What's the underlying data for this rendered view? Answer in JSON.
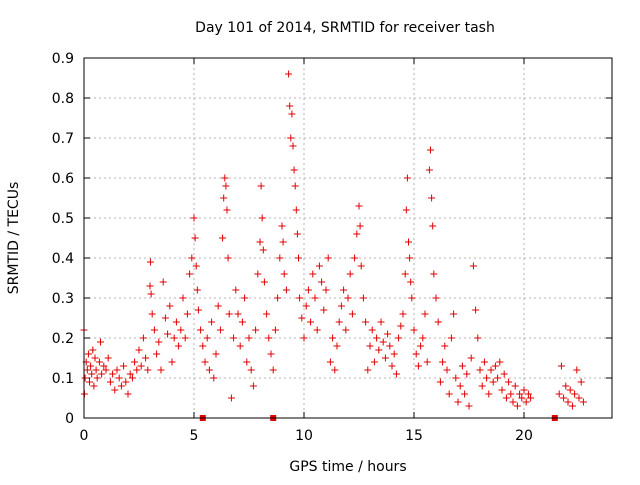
{
  "chart_data": {
    "type": "scatter",
    "title": "Day 101 of 2014, SRMTID for receiver tash",
    "xlabel": "GPS time / hours",
    "ylabel": "SRMTID / TECUs",
    "xlim": [
      0,
      24
    ],
    "ylim": [
      0,
      0.9
    ],
    "xticks": [
      0,
      5,
      10,
      15,
      20
    ],
    "yticks": [
      0,
      0.1,
      0.2,
      0.3,
      0.4,
      0.5,
      0.6,
      0.7,
      0.8,
      0.9
    ],
    "xtick_labels": [
      "0",
      "5",
      "10",
      "15",
      "20"
    ],
    "ytick_labels": [
      "0",
      "0.1",
      "0.2",
      "0.3",
      "0.4",
      "0.5",
      "0.6",
      "0.7",
      "0.8",
      "0.9"
    ],
    "grid": true,
    "marker": "+",
    "marker_color": "#e00000",
    "series": [
      {
        "name": "SRMTID",
        "points": [
          [
            0.0,
            0.22
          ],
          [
            0.02,
            0.06
          ],
          [
            0.05,
            0.1
          ],
          [
            0.1,
            0.14
          ],
          [
            0.15,
            0.12
          ],
          [
            0.2,
            0.16
          ],
          [
            0.25,
            0.09
          ],
          [
            0.3,
            0.13
          ],
          [
            0.35,
            0.11
          ],
          [
            0.4,
            0.17
          ],
          [
            0.45,
            0.08
          ],
          [
            0.5,
            0.15
          ],
          [
            0.55,
            0.12
          ],
          [
            0.6,
            0.1
          ],
          [
            0.7,
            0.14
          ],
          [
            0.75,
            0.19
          ],
          [
            0.8,
            0.11
          ],
          [
            0.9,
            0.13
          ],
          [
            1.0,
            0.12
          ],
          [
            1.1,
            0.15
          ],
          [
            1.2,
            0.09
          ],
          [
            1.3,
            0.11
          ],
          [
            1.4,
            0.07
          ],
          [
            1.5,
            0.12
          ],
          [
            1.6,
            0.1
          ],
          [
            1.7,
            0.08
          ],
          [
            1.8,
            0.13
          ],
          [
            1.9,
            0.09
          ],
          [
            2.0,
            0.06
          ],
          [
            2.1,
            0.11
          ],
          [
            2.2,
            0.1
          ],
          [
            2.3,
            0.14
          ],
          [
            2.4,
            0.12
          ],
          [
            2.5,
            0.17
          ],
          [
            2.6,
            0.13
          ],
          [
            2.7,
            0.2
          ],
          [
            2.8,
            0.15
          ],
          [
            2.9,
            0.12
          ],
          [
            3.0,
            0.33
          ],
          [
            3.02,
            0.39
          ],
          [
            3.05,
            0.31
          ],
          [
            3.1,
            0.26
          ],
          [
            3.2,
            0.22
          ],
          [
            3.3,
            0.16
          ],
          [
            3.4,
            0.19
          ],
          [
            3.5,
            0.12
          ],
          [
            3.6,
            0.34
          ],
          [
            3.7,
            0.25
          ],
          [
            3.8,
            0.21
          ],
          [
            3.9,
            0.28
          ],
          [
            4.0,
            0.14
          ],
          [
            4.1,
            0.2
          ],
          [
            4.2,
            0.24
          ],
          [
            4.3,
            0.18
          ],
          [
            4.4,
            0.22
          ],
          [
            4.5,
            0.3
          ],
          [
            4.6,
            0.2
          ],
          [
            4.7,
            0.26
          ],
          [
            4.8,
            0.36
          ],
          [
            4.9,
            0.4
          ],
          [
            5.0,
            0.5
          ],
          [
            5.05,
            0.45
          ],
          [
            5.1,
            0.38
          ],
          [
            5.15,
            0.32
          ],
          [
            5.2,
            0.27
          ],
          [
            5.3,
            0.22
          ],
          [
            5.4,
            0.18
          ],
          [
            5.5,
            0.14
          ],
          [
            5.6,
            0.2
          ],
          [
            5.7,
            0.12
          ],
          [
            5.8,
            0.24
          ],
          [
            5.9,
            0.1
          ],
          [
            6.0,
            0.16
          ],
          [
            6.1,
            0.28
          ],
          [
            6.2,
            0.22
          ],
          [
            6.3,
            0.45
          ],
          [
            6.35,
            0.55
          ],
          [
            6.4,
            0.6
          ],
          [
            6.45,
            0.58
          ],
          [
            6.5,
            0.52
          ],
          [
            6.55,
            0.4
          ],
          [
            6.6,
            0.26
          ],
          [
            6.7,
            0.05
          ],
          [
            6.8,
            0.2
          ],
          [
            6.9,
            0.32
          ],
          [
            7.0,
            0.26
          ],
          [
            7.1,
            0.18
          ],
          [
            7.2,
            0.24
          ],
          [
            7.3,
            0.3
          ],
          [
            7.4,
            0.14
          ],
          [
            7.5,
            0.2
          ],
          [
            7.6,
            0.12
          ],
          [
            7.7,
            0.08
          ],
          [
            7.8,
            0.22
          ],
          [
            7.9,
            0.36
          ],
          [
            8.0,
            0.44
          ],
          [
            8.05,
            0.58
          ],
          [
            8.1,
            0.5
          ],
          [
            8.15,
            0.42
          ],
          [
            8.2,
            0.34
          ],
          [
            8.3,
            0.26
          ],
          [
            8.4,
            0.2
          ],
          [
            8.5,
            0.16
          ],
          [
            8.6,
            0.12
          ],
          [
            8.7,
            0.22
          ],
          [
            8.8,
            0.3
          ],
          [
            8.9,
            0.4
          ],
          [
            9.0,
            0.48
          ],
          [
            9.05,
            0.44
          ],
          [
            9.1,
            0.36
          ],
          [
            9.2,
            0.32
          ],
          [
            9.3,
            0.86
          ],
          [
            9.35,
            0.78
          ],
          [
            9.4,
            0.7
          ],
          [
            9.45,
            0.76
          ],
          [
            9.5,
            0.68
          ],
          [
            9.55,
            0.62
          ],
          [
            9.6,
            0.58
          ],
          [
            9.65,
            0.52
          ],
          [
            9.7,
            0.46
          ],
          [
            9.75,
            0.4
          ],
          [
            9.8,
            0.3
          ],
          [
            9.9,
            0.25
          ],
          [
            10.0,
            0.2
          ],
          [
            10.1,
            0.28
          ],
          [
            10.2,
            0.32
          ],
          [
            10.3,
            0.24
          ],
          [
            10.4,
            0.36
          ],
          [
            10.5,
            0.3
          ],
          [
            10.6,
            0.22
          ],
          [
            10.7,
            0.38
          ],
          [
            10.8,
            0.34
          ],
          [
            10.9,
            0.27
          ],
          [
            11.0,
            0.32
          ],
          [
            11.1,
            0.4
          ],
          [
            11.2,
            0.14
          ],
          [
            11.3,
            0.2
          ],
          [
            11.4,
            0.12
          ],
          [
            11.5,
            0.18
          ],
          [
            11.6,
            0.24
          ],
          [
            11.7,
            0.28
          ],
          [
            11.8,
            0.32
          ],
          [
            11.9,
            0.22
          ],
          [
            12.0,
            0.3
          ],
          [
            12.1,
            0.36
          ],
          [
            12.2,
            0.26
          ],
          [
            12.3,
            0.4
          ],
          [
            12.4,
            0.46
          ],
          [
            12.5,
            0.53
          ],
          [
            12.55,
            0.48
          ],
          [
            12.6,
            0.38
          ],
          [
            12.7,
            0.3
          ],
          [
            12.8,
            0.24
          ],
          [
            12.9,
            0.12
          ],
          [
            13.0,
            0.18
          ],
          [
            13.1,
            0.22
          ],
          [
            13.2,
            0.14
          ],
          [
            13.3,
            0.2
          ],
          [
            13.4,
            0.17
          ],
          [
            13.5,
            0.24
          ],
          [
            13.6,
            0.19
          ],
          [
            13.7,
            0.15
          ],
          [
            13.8,
            0.21
          ],
          [
            13.9,
            0.18
          ],
          [
            14.0,
            0.13
          ],
          [
            14.1,
            0.16
          ],
          [
            14.2,
            0.11
          ],
          [
            14.3,
            0.2
          ],
          [
            14.4,
            0.23
          ],
          [
            14.5,
            0.26
          ],
          [
            14.6,
            0.36
          ],
          [
            14.65,
            0.52
          ],
          [
            14.7,
            0.6
          ],
          [
            14.75,
            0.44
          ],
          [
            14.8,
            0.4
          ],
          [
            14.85,
            0.34
          ],
          [
            14.9,
            0.3
          ],
          [
            15.0,
            0.22
          ],
          [
            15.1,
            0.16
          ],
          [
            15.2,
            0.13
          ],
          [
            15.3,
            0.18
          ],
          [
            15.4,
            0.2
          ],
          [
            15.5,
            0.26
          ],
          [
            15.6,
            0.14
          ],
          [
            15.7,
            0.62
          ],
          [
            15.75,
            0.67
          ],
          [
            15.8,
            0.55
          ],
          [
            15.85,
            0.48
          ],
          [
            15.9,
            0.36
          ],
          [
            16.0,
            0.3
          ],
          [
            16.1,
            0.24
          ],
          [
            16.2,
            0.09
          ],
          [
            16.3,
            0.14
          ],
          [
            16.4,
            0.18
          ],
          [
            16.5,
            0.12
          ],
          [
            16.6,
            0.06
          ],
          [
            16.7,
            0.2
          ],
          [
            16.8,
            0.26
          ],
          [
            16.9,
            0.1
          ],
          [
            17.0,
            0.04
          ],
          [
            17.1,
            0.08
          ],
          [
            17.2,
            0.13
          ],
          [
            17.3,
            0.06
          ],
          [
            17.4,
            0.11
          ],
          [
            17.5,
            0.03
          ],
          [
            17.6,
            0.15
          ],
          [
            17.7,
            0.38
          ],
          [
            17.8,
            0.27
          ],
          [
            17.9,
            0.2
          ],
          [
            18.0,
            0.12
          ],
          [
            18.1,
            0.08
          ],
          [
            18.2,
            0.14
          ],
          [
            18.3,
            0.1
          ],
          [
            18.4,
            0.06
          ],
          [
            18.5,
            0.12
          ],
          [
            18.6,
            0.09
          ],
          [
            18.7,
            0.13
          ],
          [
            18.8,
            0.1
          ],
          [
            18.9,
            0.14
          ],
          [
            19.0,
            0.07
          ],
          [
            19.1,
            0.11
          ],
          [
            19.2,
            0.05
          ],
          [
            19.3,
            0.09
          ],
          [
            19.4,
            0.06
          ],
          [
            19.5,
            0.04
          ],
          [
            19.6,
            0.08
          ],
          [
            19.7,
            0.03
          ],
          [
            19.8,
            0.06
          ],
          [
            19.9,
            0.05
          ],
          [
            20.0,
            0.07
          ],
          [
            20.1,
            0.04
          ],
          [
            20.2,
            0.06
          ],
          [
            20.3,
            0.05
          ],
          [
            21.6,
            0.06
          ],
          [
            21.7,
            0.13
          ],
          [
            21.8,
            0.05
          ],
          [
            21.9,
            0.08
          ],
          [
            22.0,
            0.04
          ],
          [
            22.1,
            0.07
          ],
          [
            22.2,
            0.03
          ],
          [
            22.3,
            0.06
          ],
          [
            22.4,
            0.12
          ],
          [
            22.5,
            0.05
          ],
          [
            22.6,
            0.09
          ],
          [
            22.7,
            0.04
          ]
        ]
      }
    ],
    "zero_markers": [
      5.4,
      8.6,
      21.4
    ]
  }
}
